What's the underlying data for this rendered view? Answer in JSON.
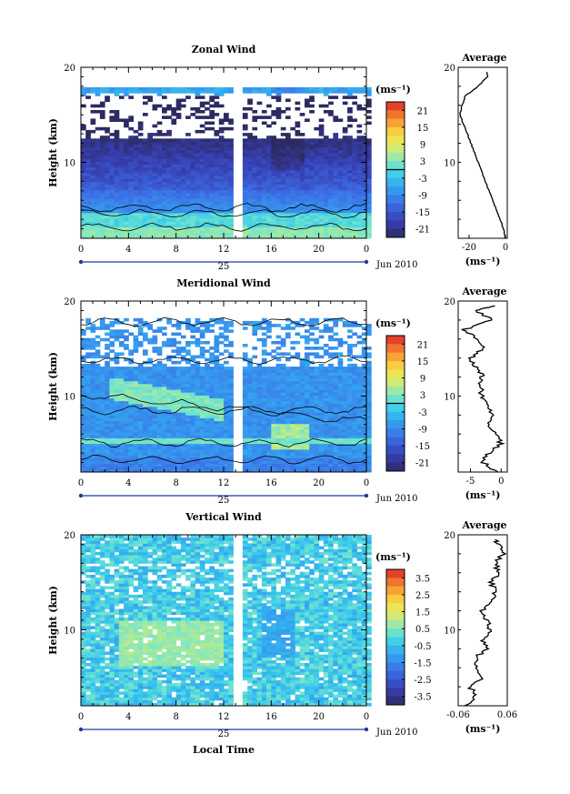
{
  "figure": {
    "x_axis_label": "Local Time",
    "x_ticks": [
      "0",
      "4",
      "8",
      "12",
      "16",
      "20",
      "0"
    ],
    "x_range": [
      0,
      24
    ],
    "date_marker": "25",
    "date_label": "Jun 2010",
    "y_axis_label": "Height (km)",
    "y_ticks": [
      "20",
      "10"
    ],
    "y_range": [
      2,
      20
    ],
    "unit_label": "(ms⁻¹)"
  },
  "chart_data": [
    {
      "type": "heatmap",
      "title": "Zonal Wind",
      "xlabel": "",
      "ylabel": "Height (km)",
      "x_range": [
        0,
        24
      ],
      "ylim": [
        2,
        20
      ],
      "colorbar": {
        "label": "(ms⁻¹)",
        "ticks": [
          "21",
          "15",
          "9",
          "3",
          "-3",
          "-9",
          "-15",
          "-21"
        ],
        "range": [
          -24,
          24
        ],
        "contour_level": 0
      },
      "profile": {
        "title": "Average",
        "xlabel": "(ms⁻¹)",
        "x_ticks": [
          "-20",
          "0"
        ],
        "xlim": [
          -26,
          1
        ],
        "heights": [
          2,
          3,
          4,
          5,
          6,
          7,
          8,
          9,
          10,
          11,
          12,
          13,
          14,
          15,
          16,
          17,
          18,
          19,
          19.5
        ],
        "values": [
          0,
          -1,
          -3,
          -5,
          -7,
          -9,
          -11,
          -13,
          -15,
          -17,
          -19,
          -21,
          -23,
          -25,
          -24,
          -22,
          -15,
          -10,
          -10
        ]
      }
    },
    {
      "type": "heatmap",
      "title": "Meridional Wind",
      "xlabel": "",
      "ylabel": "Height (km)",
      "x_range": [
        0,
        24
      ],
      "ylim": [
        2,
        20
      ],
      "colorbar": {
        "label": "(ms⁻¹)",
        "ticks": [
          "21",
          "15",
          "9",
          "3",
          "-3",
          "-9",
          "-15",
          "-21"
        ],
        "range": [
          -24,
          24
        ],
        "contour_level": 0
      },
      "profile": {
        "title": "Average",
        "xlabel": "(ms⁻¹)",
        "x_ticks": [
          "-5",
          "0"
        ],
        "xlim": [
          -7,
          1
        ],
        "heights": [
          2,
          3,
          4,
          5,
          6,
          7,
          8,
          9,
          10,
          11,
          12,
          13,
          14,
          15,
          16,
          17,
          18,
          19,
          19.5
        ],
        "values": [
          -0.5,
          -3,
          -2,
          0,
          -1,
          -2,
          -1.5,
          -2.5,
          -3,
          -3.5,
          -3,
          -4,
          -5,
          -3,
          -4,
          -6,
          -1.5,
          -4,
          -1
        ]
      }
    },
    {
      "type": "heatmap",
      "title": "Vertical Wind",
      "xlabel": "Local Time",
      "ylabel": "Height (km)",
      "x_range": [
        0,
        24
      ],
      "ylim": [
        2,
        20
      ],
      "colorbar": {
        "label": "(ms⁻¹)",
        "ticks": [
          "3.5",
          "2.5",
          "1.5",
          "0.5",
          "-0.5",
          "-1.5",
          "-2.5",
          "-3.5"
        ],
        "range": [
          -4,
          4
        ],
        "contour_level": null
      },
      "profile": {
        "title": "Average",
        "xlabel": "(ms⁻¹)",
        "x_ticks": [
          "-0.06",
          "0.06"
        ],
        "xlim": [
          -0.06,
          0.06
        ],
        "heights": [
          2,
          3,
          4,
          5,
          6,
          7,
          8,
          9,
          10,
          11,
          12,
          13,
          14,
          15,
          16,
          17,
          18,
          19,
          19.5
        ],
        "values": [
          -0.04,
          -0.02,
          -0.03,
          0.0,
          -0.01,
          -0.02,
          0.01,
          0.0,
          0.02,
          0.01,
          0.0,
          0.02,
          0.03,
          0.02,
          0.04,
          0.03,
          0.05,
          0.04,
          0.03
        ]
      }
    }
  ]
}
